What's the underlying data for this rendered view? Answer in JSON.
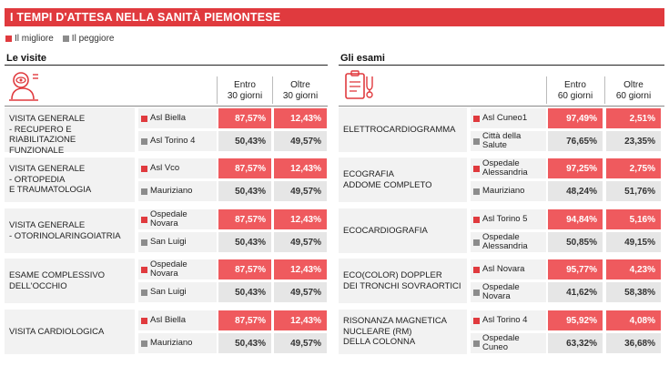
{
  "title": "I TEMPI D'ATTESA NELLA SANITÀ PIEMONTESE",
  "legend": {
    "best": "Il migliore",
    "worst": "Il peggiore",
    "best_color": "#e03a3e",
    "worst_color": "#8c8c8c"
  },
  "visite": {
    "title": "Le visite",
    "col1": [
      "Entro",
      "30 giorni"
    ],
    "col2": [
      "Oltre",
      "30 giorni"
    ],
    "rows": [
      {
        "exam": [
          "VISITA GENERALE",
          "- RECUPERO E RIABILITAZIONE",
          "FUNZIONALE"
        ],
        "best": {
          "name": [
            "Asl Biella"
          ],
          "within": "87,57%",
          "over": "12,43%"
        },
        "worst": {
          "name": [
            "Asl Torino 4"
          ],
          "within": "50,43%",
          "over": "49,57%"
        }
      },
      {
        "exam": [
          "VISITA GENERALE",
          "- ORTOPEDIA",
          "E TRAUMATOLOGIA"
        ],
        "best": {
          "name": [
            "Asl Vco"
          ],
          "within": "87,57%",
          "over": "12,43%"
        },
        "worst": {
          "name": [
            "Mauriziano"
          ],
          "within": "50,43%",
          "over": "49,57%"
        }
      },
      {
        "exam": [
          "VISITA GENERALE",
          "- OTORINOLARINGOIATRIA"
        ],
        "best": {
          "name": [
            "Ospedale Novara"
          ],
          "within": "87,57%",
          "over": "12,43%"
        },
        "worst": {
          "name": [
            "San Luigi"
          ],
          "within": "50,43%",
          "over": "49,57%"
        }
      },
      {
        "exam": [
          "ESAME COMPLESSIVO",
          "DELL'OCCHIO"
        ],
        "best": {
          "name": [
            "Ospedale Novara"
          ],
          "within": "87,57%",
          "over": "12,43%"
        },
        "worst": {
          "name": [
            "San Luigi"
          ],
          "within": "50,43%",
          "over": "49,57%"
        }
      },
      {
        "exam": [
          "VISITA CARDIOLOGICA"
        ],
        "best": {
          "name": [
            "Asl Biella"
          ],
          "within": "87,57%",
          "over": "12,43%"
        },
        "worst": {
          "name": [
            "Mauriziano"
          ],
          "within": "50,43%",
          "over": "49,57%"
        }
      }
    ]
  },
  "esami": {
    "title": "Gli esami",
    "col1": [
      "Entro",
      "60 giorni"
    ],
    "col2": [
      "Oltre",
      "60 giorni"
    ],
    "rows": [
      {
        "exam": [
          "ELETTROCARDIOGRAMMA"
        ],
        "best": {
          "name": [
            "Asl Cuneo1"
          ],
          "within": "97,49%",
          "over": "2,51%"
        },
        "worst": {
          "name": [
            "Città della Salute"
          ],
          "within": "76,65%",
          "over": "23,35%"
        }
      },
      {
        "exam": [
          "ECOGRAFIA",
          "ADDOME COMPLETO"
        ],
        "best": {
          "name": [
            "Ospedale",
            "Alessandria"
          ],
          "within": "97,25%",
          "over": "2,75%"
        },
        "worst": {
          "name": [
            "Mauriziano"
          ],
          "within": "48,24%",
          "over": "51,76%"
        }
      },
      {
        "exam": [
          "ECOCARDIOGRAFIA"
        ],
        "best": {
          "name": [
            "Asl Torino 5"
          ],
          "within": "94,84%",
          "over": "5,16%"
        },
        "worst": {
          "name": [
            "Ospedale",
            "Alessandria"
          ],
          "within": "50,85%",
          "over": "49,15%"
        }
      },
      {
        "exam": [
          "ECO(COLOR) DOPPLER",
          "DEI TRONCHI SOVRAORTICI"
        ],
        "best": {
          "name": [
            "Asl Novara"
          ],
          "within": "95,77%",
          "over": "4,23%"
        },
        "worst": {
          "name": [
            "Ospedale Novara"
          ],
          "within": "41,62%",
          "over": "58,38%"
        }
      },
      {
        "exam": [
          "RISONANZA MAGNETICA",
          "NUCLEARE (RM)",
          "DELLA COLONNA"
        ],
        "best": {
          "name": [
            "Asl Torino 4"
          ],
          "within": "95,92%",
          "over": "4,08%"
        },
        "worst": {
          "name": [
            "Ospedale Cuneo"
          ],
          "within": "63,32%",
          "over": "36,68%"
        }
      }
    ]
  }
}
